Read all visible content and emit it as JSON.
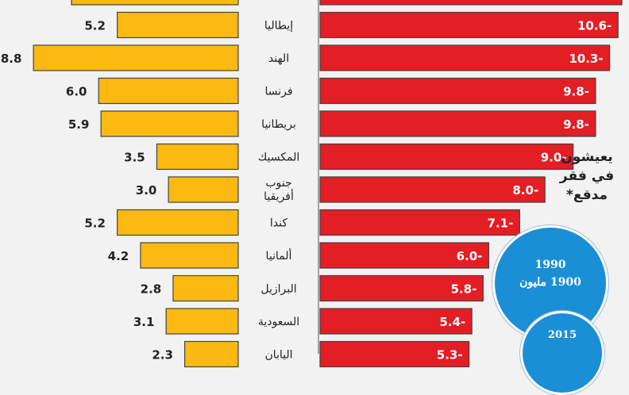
{
  "chart_data": {
    "type": "bar",
    "categories": [
      "",
      "إيطاليا",
      "الهند",
      "فرنسا",
      "بريطانيا",
      "المكسيك",
      "جنوب أفريقيا",
      "كندا",
      "ألمانيا",
      "البرازيل",
      "السعودية",
      "اليابان"
    ],
    "series": [
      {
        "values": [
          null,
          5.2,
          8.8,
          6.0,
          5.9,
          3.5,
          3.0,
          5.2,
          4.2,
          2.8,
          3.1,
          2.3
        ],
        "labels": [
          "",
          "5.2",
          "8.8",
          "6.0",
          "5.9",
          "3.5",
          "3.0",
          "5.2",
          "4.2",
          "2.8",
          "3.1",
          "2.3"
        ]
      },
      {
        "values": [
          null,
          -10.6,
          -10.3,
          -9.8,
          -9.8,
          -9.0,
          -8.0,
          -7.1,
          -6.0,
          -5.8,
          -5.4,
          -5.3
        ],
        "labels": [
          "",
          "10.6-",
          "10.3-",
          "9.8-",
          "9.8-",
          "9.0-",
          "8.0-",
          "7.1-",
          "6.0-",
          "5.8-",
          "5.4-",
          "5.3-"
        ]
      }
    ],
    "colors": {
      "positive": "#fbb912",
      "negative": "#e31e24",
      "circle": "#1b8fd6"
    }
  },
  "note": {
    "line1": "يعيشون",
    "line2": "في فقر",
    "line3": "مدقع*"
  },
  "circles": [
    {
      "year": "1990",
      "text": "1900 مليون"
    },
    {
      "year": "2015",
      "text": ""
    }
  ]
}
